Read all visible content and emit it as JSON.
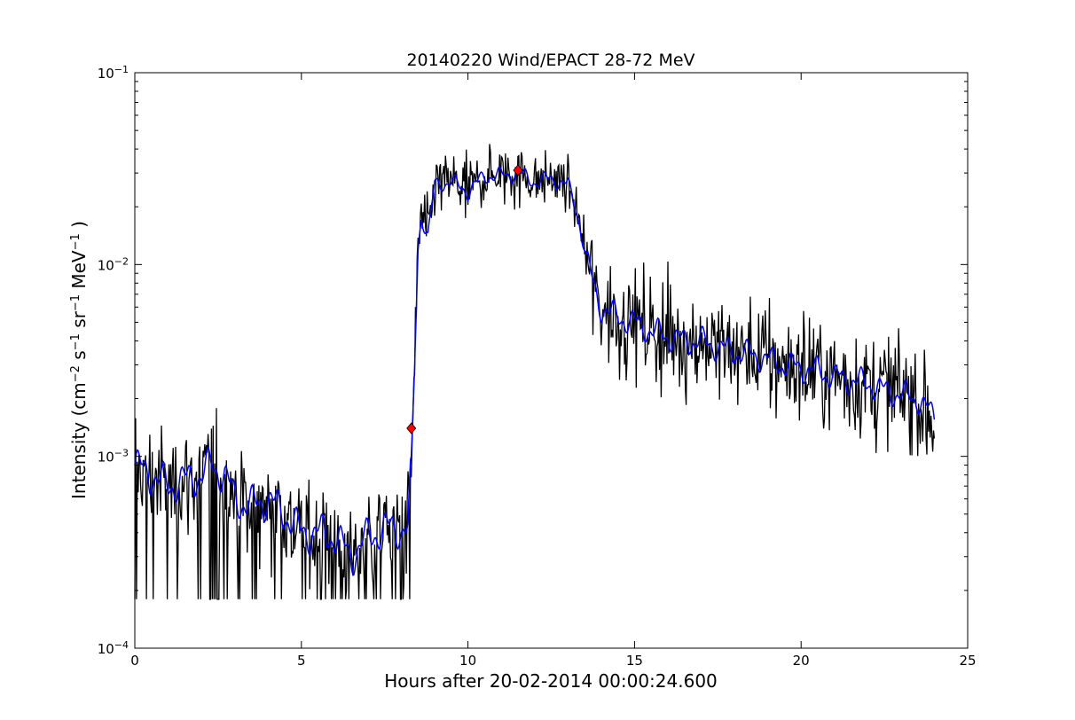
{
  "chart_data": {
    "type": "line",
    "title": "20140220 Wind/EPACT 28-72 MeV",
    "xlabel": "Hours after 20-02-2014 00:00:24.600",
    "ylabel_parts": [
      "Intensity (cm",
      "−2",
      " s",
      "−1",
      " sr",
      "−1",
      " MeV",
      "−1",
      " )"
    ],
    "xlim": [
      0,
      25
    ],
    "ylim": [
      0.0001,
      0.1
    ],
    "yscale": "log",
    "grid": false,
    "x_ticks": [
      0,
      5,
      10,
      15,
      20,
      25
    ],
    "y_ticks": [
      {
        "value": 0.0001,
        "base": "10",
        "exp": "−4"
      },
      {
        "value": 0.001,
        "base": "10",
        "exp": "−3"
      },
      {
        "value": 0.01,
        "base": "10",
        "exp": "−2"
      },
      {
        "value": 0.1,
        "base": "10",
        "exp": "−1"
      }
    ],
    "series": [
      {
        "color": "#000000",
        "style": "raw",
        "anchors": [
          [
            0.0,
            0.0009
          ],
          [
            0.5,
            0.0008
          ],
          [
            1.0,
            0.0007
          ],
          [
            1.5,
            0.00075
          ],
          [
            2.0,
            0.0008
          ],
          [
            2.3,
            0.0009
          ],
          [
            2.7,
            0.0008
          ],
          [
            3.0,
            0.0006
          ],
          [
            3.5,
            0.00055
          ],
          [
            4.0,
            0.0006
          ],
          [
            4.5,
            0.0005
          ],
          [
            5.0,
            0.0004
          ],
          [
            5.5,
            0.0004
          ],
          [
            6.0,
            0.00038
          ],
          [
            6.5,
            0.0003
          ],
          [
            7.0,
            0.00038
          ],
          [
            7.5,
            0.00042
          ],
          [
            8.0,
            0.00042
          ],
          [
            8.2,
            0.00042
          ],
          [
            8.3,
            0.0009
          ],
          [
            8.4,
            0.003
          ],
          [
            8.5,
            0.012
          ],
          [
            8.6,
            0.018
          ],
          [
            8.8,
            0.014
          ],
          [
            9.0,
            0.026
          ],
          [
            9.5,
            0.027
          ],
          [
            10.0,
            0.024
          ],
          [
            10.5,
            0.029
          ],
          [
            11.0,
            0.029
          ],
          [
            11.5,
            0.03
          ],
          [
            12.0,
            0.027
          ],
          [
            12.5,
            0.028
          ],
          [
            13.0,
            0.026
          ],
          [
            13.3,
            0.018
          ],
          [
            13.6,
            0.01
          ],
          [
            13.9,
            0.0065
          ],
          [
            14.0,
            0.006
          ],
          [
            14.5,
            0.0053
          ],
          [
            15.0,
            0.005
          ],
          [
            15.5,
            0.0045
          ],
          [
            16.0,
            0.0042
          ],
          [
            16.5,
            0.004
          ],
          [
            17.0,
            0.004
          ],
          [
            17.5,
            0.0037
          ],
          [
            18.0,
            0.0035
          ],
          [
            18.5,
            0.0034
          ],
          [
            19.0,
            0.0032
          ],
          [
            19.5,
            0.003
          ],
          [
            20.0,
            0.0029
          ],
          [
            20.5,
            0.0028
          ],
          [
            21.0,
            0.0026
          ],
          [
            21.5,
            0.0025
          ],
          [
            22.0,
            0.0024
          ],
          [
            22.5,
            0.0022
          ],
          [
            23.0,
            0.0021
          ],
          [
            23.5,
            0.002
          ],
          [
            24.0,
            0.0015
          ]
        ],
        "noise_levels": [
          [
            0.0,
            0.12
          ],
          [
            8.3,
            0.12
          ],
          [
            8.4,
            0.08
          ],
          [
            13.5,
            0.06
          ],
          [
            13.7,
            0.12
          ],
          [
            24.0,
            0.14
          ]
        ],
        "floor": 0.00018
      },
      {
        "color": "#0000ff",
        "style": "smoothed",
        "anchors": [
          [
            0.0,
            0.0009
          ],
          [
            0.5,
            0.0008
          ],
          [
            1.0,
            0.0007
          ],
          [
            1.5,
            0.00075
          ],
          [
            2.0,
            0.0008
          ],
          [
            2.3,
            0.0009
          ],
          [
            2.7,
            0.0008
          ],
          [
            3.0,
            0.0006
          ],
          [
            3.5,
            0.00055
          ],
          [
            4.0,
            0.0006
          ],
          [
            4.5,
            0.0005
          ],
          [
            5.0,
            0.0004
          ],
          [
            5.5,
            0.0004
          ],
          [
            6.0,
            0.00038
          ],
          [
            6.5,
            0.0003
          ],
          [
            7.0,
            0.00038
          ],
          [
            7.5,
            0.00042
          ],
          [
            8.0,
            0.00042
          ],
          [
            8.2,
            0.00042
          ],
          [
            8.3,
            0.0009
          ],
          [
            8.4,
            0.003
          ],
          [
            8.5,
            0.012
          ],
          [
            8.6,
            0.018
          ],
          [
            8.8,
            0.014
          ],
          [
            9.0,
            0.026
          ],
          [
            9.5,
            0.027
          ],
          [
            10.0,
            0.024
          ],
          [
            10.5,
            0.029
          ],
          [
            11.0,
            0.029
          ],
          [
            11.5,
            0.03
          ],
          [
            12.0,
            0.027
          ],
          [
            12.5,
            0.028
          ],
          [
            13.0,
            0.026
          ],
          [
            13.3,
            0.018
          ],
          [
            13.6,
            0.01
          ],
          [
            13.9,
            0.0065
          ],
          [
            14.0,
            0.006
          ],
          [
            14.5,
            0.0053
          ],
          [
            15.0,
            0.005
          ],
          [
            15.5,
            0.0045
          ],
          [
            16.0,
            0.0042
          ],
          [
            16.5,
            0.004
          ],
          [
            17.0,
            0.004
          ],
          [
            17.5,
            0.0037
          ],
          [
            18.0,
            0.0035
          ],
          [
            18.5,
            0.0034
          ],
          [
            19.0,
            0.0032
          ],
          [
            19.5,
            0.003
          ],
          [
            20.0,
            0.0029
          ],
          [
            20.5,
            0.0028
          ],
          [
            21.0,
            0.0026
          ],
          [
            21.5,
            0.0025
          ],
          [
            22.0,
            0.0024
          ],
          [
            22.5,
            0.0022
          ],
          [
            23.0,
            0.0021
          ],
          [
            23.5,
            0.002
          ],
          [
            24.0,
            0.0016
          ]
        ]
      }
    ],
    "markers": [
      {
        "x": 8.3,
        "y": 0.0014,
        "color": "#ff0000",
        "shape": "diamond"
      },
      {
        "x": 11.5,
        "y": 0.031,
        "color": "#ff0000",
        "shape": "diamond"
      }
    ]
  }
}
